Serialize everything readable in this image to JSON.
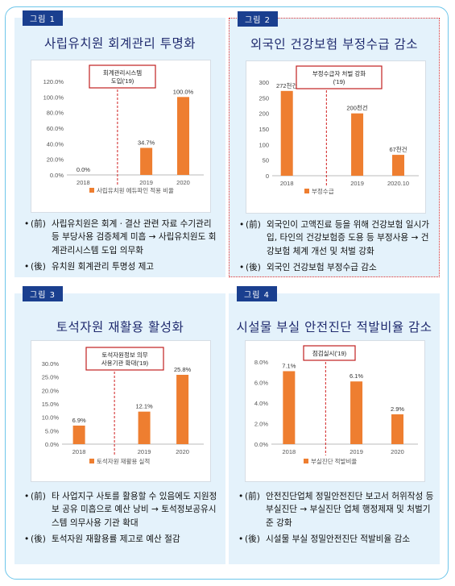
{
  "panels": [
    {
      "tag": "그림 1",
      "title": "사립유치원 회계관리 투명화",
      "bullets": [
        {
          "prefix": "(前)",
          "text": "사립유치원은 회계ㆍ결산 관련 자료 수기관리 등 부당사용 검증체계 미흡 → 사립유치원도 회계관리시스템 도입 의무화"
        },
        {
          "prefix": "(後)",
          "text": "유치원 회계관리 투명성 제고"
        }
      ]
    },
    {
      "tag": "그림 2",
      "title": "외국인 건강보험 부정수급 감소",
      "bullets": [
        {
          "prefix": "(前)",
          "text": "외국인이 고액진료 등을 위해 건강보험 일시가입, 타인의 건강보험증 도용 등 부정사용 → 건강보험 체계 개선 및 처벌 강화"
        },
        {
          "prefix": "(後)",
          "text": "외국인 건강보험 부정수급 감소"
        }
      ]
    },
    {
      "tag": "그림 3",
      "title": "토석자원 재활용 활성화",
      "bullets": [
        {
          "prefix": "(前)",
          "text": "타 사업지구 사토를 활용할 수 있음에도 지원정보 공유 미흡으로 예산 낭비 → 토석정보공유시스템 의무사용 기관 확대"
        },
        {
          "prefix": "(後)",
          "text": "토석자원 재활용률 제고로 예산 절감"
        }
      ]
    },
    {
      "tag": "그림 4",
      "title": "시설물 부실 안전진단 적발비율 감소",
      "bullets": [
        {
          "prefix": "(前)",
          "text": "안전진단업체 정밀안전진단 보고서 허위작성 등 부실진단 → 부실진단 업체 행정제재 및 처벌기준 강화"
        },
        {
          "prefix": "(後)",
          "text": "시설물 부실 정밀안전진단 적발비율 감소"
        }
      ]
    }
  ],
  "chart_data": [
    {
      "type": "bar",
      "categories": [
        "2018",
        "2019",
        "2020"
      ],
      "values": [
        0.0,
        34.7,
        100.0
      ],
      "data_labels": [
        "0.0%",
        "34.7%",
        "100.0%"
      ],
      "yticks": [
        "0.0%",
        "20.0%",
        "40.0%",
        "60.0%",
        "80.0%",
        "100.0%",
        "120.0%"
      ],
      "ylim": [
        0,
        120
      ],
      "legend": "사립유치원 에듀파인 적용 비율",
      "annotation": [
        "회계관리시스템",
        "도입('19)"
      ],
      "color": "#ee7e30"
    },
    {
      "type": "bar",
      "categories": [
        "2018",
        "2019",
        "2020.10"
      ],
      "values": [
        272,
        200,
        67
      ],
      "data_labels": [
        "272천건",
        "200천건",
        "67천건"
      ],
      "yticks": [
        "0",
        "50",
        "100",
        "150",
        "200",
        "250",
        "300"
      ],
      "ylim": [
        0,
        300
      ],
      "legend": "부정수급",
      "annotation": [
        "부정수급자 처벌 강화",
        "('19)"
      ],
      "color": "#ee7e30"
    },
    {
      "type": "bar",
      "categories": [
        "2018",
        "2019",
        "2020"
      ],
      "values": [
        6.9,
        12.1,
        25.8
      ],
      "data_labels": [
        "6.9%",
        "12.1%",
        "25.8%"
      ],
      "yticks": [
        "0.0%",
        "5.0%",
        "10.0%",
        "15.0%",
        "20.0%",
        "25.0%",
        "30.0%"
      ],
      "ylim": [
        0,
        30
      ],
      "legend": "토석자원 재활용 실적",
      "annotation": [
        "토석자원정보 의무",
        "사용기관 확대('19)"
      ],
      "color": "#ee7e30"
    },
    {
      "type": "bar",
      "categories": [
        "2018",
        "2019",
        "2020"
      ],
      "values": [
        7.1,
        6.1,
        2.9
      ],
      "data_labels": [
        "7.1%",
        "6.1%",
        "2.9%"
      ],
      "yticks": [
        "0.0%",
        "2.0%",
        "4.0%",
        "6.0%",
        "8.0%"
      ],
      "ylim": [
        0,
        8
      ],
      "legend": "부실진단 적발비율",
      "annotation": [
        "점검실시('19)"
      ],
      "color": "#ee7e30"
    }
  ]
}
